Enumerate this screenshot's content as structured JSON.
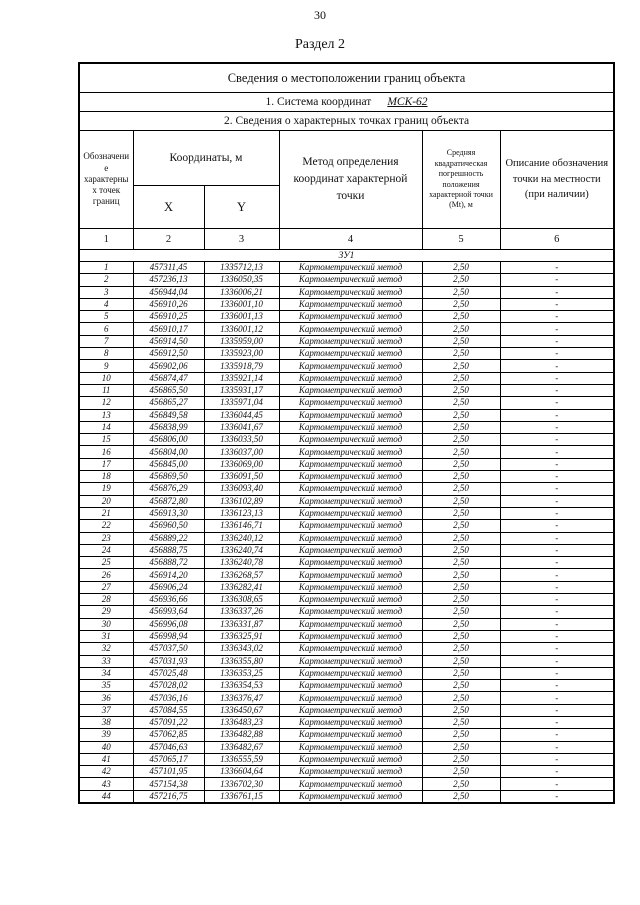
{
  "page_number": "30",
  "section_title": "Раздел 2",
  "table": {
    "title": "Сведения о местоположении границ объекта",
    "coord_system_label": "1. Система координат",
    "coord_system_value": "МСК-62",
    "points_info_label": "2. Сведения о характерных точках границ объекта",
    "columns": {
      "point_label": "Обозначение характерных точек границ",
      "coords_label": "Координаты, м",
      "x_label": "X",
      "y_label": "Y",
      "method_label": "Метод определения координат характерной точки",
      "error_label": "Средняя квадратическая погрешность положения характерной точки (Mt), м",
      "description_label": "Описание обозначения точки на местности (при наличии)"
    },
    "column_numbers": [
      "1",
      "2",
      "3",
      "4",
      "5",
      "6"
    ],
    "parcel_label": "ЗУ1",
    "rows": [
      [
        "1",
        "457311,45",
        "1335712,13",
        "Картометрический метод",
        "2,50",
        "-"
      ],
      [
        "2",
        "457236,13",
        "1336050,35",
        "Картометрический метод",
        "2,50",
        "-"
      ],
      [
        "3",
        "456944,04",
        "1336006,21",
        "Картометрический метод",
        "2,50",
        "-"
      ],
      [
        "4",
        "456910,26",
        "1336001,10",
        "Картометрический метод",
        "2,50",
        "-"
      ],
      [
        "5",
        "456910,25",
        "1336001,13",
        "Картометрический метод",
        "2,50",
        "-"
      ],
      [
        "6",
        "456910,17",
        "1336001,12",
        "Картометрический метод",
        "2,50",
        "-"
      ],
      [
        "7",
        "456914,50",
        "1335959,00",
        "Картометрический метод",
        "2,50",
        "-"
      ],
      [
        "8",
        "456912,50",
        "1335923,00",
        "Картометрический метод",
        "2,50",
        "-"
      ],
      [
        "9",
        "456902,06",
        "1335918,79",
        "Картометрический метод",
        "2,50",
        "-"
      ],
      [
        "10",
        "456874,47",
        "1335921,14",
        "Картометрический метод",
        "2,50",
        "-"
      ],
      [
        "11",
        "456865,50",
        "1335931,17",
        "Картометрический метод",
        "2,50",
        "-"
      ],
      [
        "12",
        "456865,27",
        "1335971,04",
        "Картометрический метод",
        "2,50",
        "-"
      ],
      [
        "13",
        "456849,58",
        "1336044,45",
        "Картометрический метод",
        "2,50",
        "-"
      ],
      [
        "14",
        "456838,99",
        "1336041,67",
        "Картометрический метод",
        "2,50",
        "-"
      ],
      [
        "15",
        "456806,00",
        "1336033,50",
        "Картометрический метод",
        "2,50",
        "-"
      ],
      [
        "16",
        "456804,00",
        "1336037,00",
        "Картометрический метод",
        "2,50",
        "-"
      ],
      [
        "17",
        "456845,00",
        "1336069,00",
        "Картометрический метод",
        "2,50",
        "-"
      ],
      [
        "18",
        "456869,50",
        "1336091,50",
        "Картометрический метод",
        "2,50",
        "-"
      ],
      [
        "19",
        "456876,29",
        "1336093,40",
        "Картометрический метод",
        "2,50",
        "-"
      ],
      [
        "20",
        "456872,80",
        "1336102,89",
        "Картометрический метод",
        "2,50",
        "-"
      ],
      [
        "21",
        "456913,30",
        "1336123,13",
        "Картометрический метод",
        "2,50",
        "-"
      ],
      [
        "22",
        "456960,50",
        "1336146,71",
        "Картометрический метод",
        "2,50",
        "-"
      ],
      [
        "23",
        "456889,22",
        "1336240,12",
        "Картометрический метод",
        "2,50",
        "-"
      ],
      [
        "24",
        "456888,75",
        "1336240,74",
        "Картометрический метод",
        "2,50",
        "-"
      ],
      [
        "25",
        "456888,72",
        "1336240,78",
        "Картометрический метод",
        "2,50",
        "-"
      ],
      [
        "26",
        "456914,20",
        "1336268,57",
        "Картометрический метод",
        "2,50",
        "-"
      ],
      [
        "27",
        "456906,24",
        "1336282,41",
        "Картометрический метод",
        "2,50",
        "-"
      ],
      [
        "28",
        "456936,66",
        "1336308,65",
        "Картометрический метод",
        "2,50",
        "-"
      ],
      [
        "29",
        "456993,64",
        "1336337,26",
        "Картометрический метод",
        "2,50",
        "-"
      ],
      [
        "30",
        "456996,08",
        "1336331,87",
        "Картометрический метод",
        "2,50",
        "-"
      ],
      [
        "31",
        "456998,94",
        "1336325,91",
        "Картометрический метод",
        "2,50",
        "-"
      ],
      [
        "32",
        "457037,50",
        "1336343,02",
        "Картометрический метод",
        "2,50",
        "-"
      ],
      [
        "33",
        "457031,93",
        "1336355,80",
        "Картометрический метод",
        "2,50",
        "-"
      ],
      [
        "34",
        "457025,48",
        "1336353,25",
        "Картометрический метод",
        "2,50",
        "-"
      ],
      [
        "35",
        "457028,02",
        "1336354,53",
        "Картометрический метод",
        "2,50",
        "-"
      ],
      [
        "36",
        "457036,16",
        "1336376,47",
        "Картометрический метод",
        "2,50",
        "-"
      ],
      [
        "37",
        "457084,55",
        "1336450,67",
        "Картометрический метод",
        "2,50",
        "-"
      ],
      [
        "38",
        "457091,22",
        "1336483,23",
        "Картометрический метод",
        "2,50",
        "-"
      ],
      [
        "39",
        "457062,85",
        "1336482,88",
        "Картометрический метод",
        "2,50",
        "-"
      ],
      [
        "40",
        "457046,63",
        "1336482,67",
        "Картометрический метод",
        "2,50",
        "-"
      ],
      [
        "41",
        "457065,17",
        "1336555,59",
        "Картометрический метод",
        "2,50",
        "-"
      ],
      [
        "42",
        "457101,95",
        "1336604,64",
        "Картометрический метод",
        "2,50",
        "-"
      ],
      [
        "43",
        "457154,38",
        "1336702,30",
        "Картометрический метод",
        "2,50",
        "-"
      ],
      [
        "44",
        "457216,75",
        "1336761,15",
        "Картометрический метод",
        "2,50",
        "-"
      ]
    ]
  }
}
